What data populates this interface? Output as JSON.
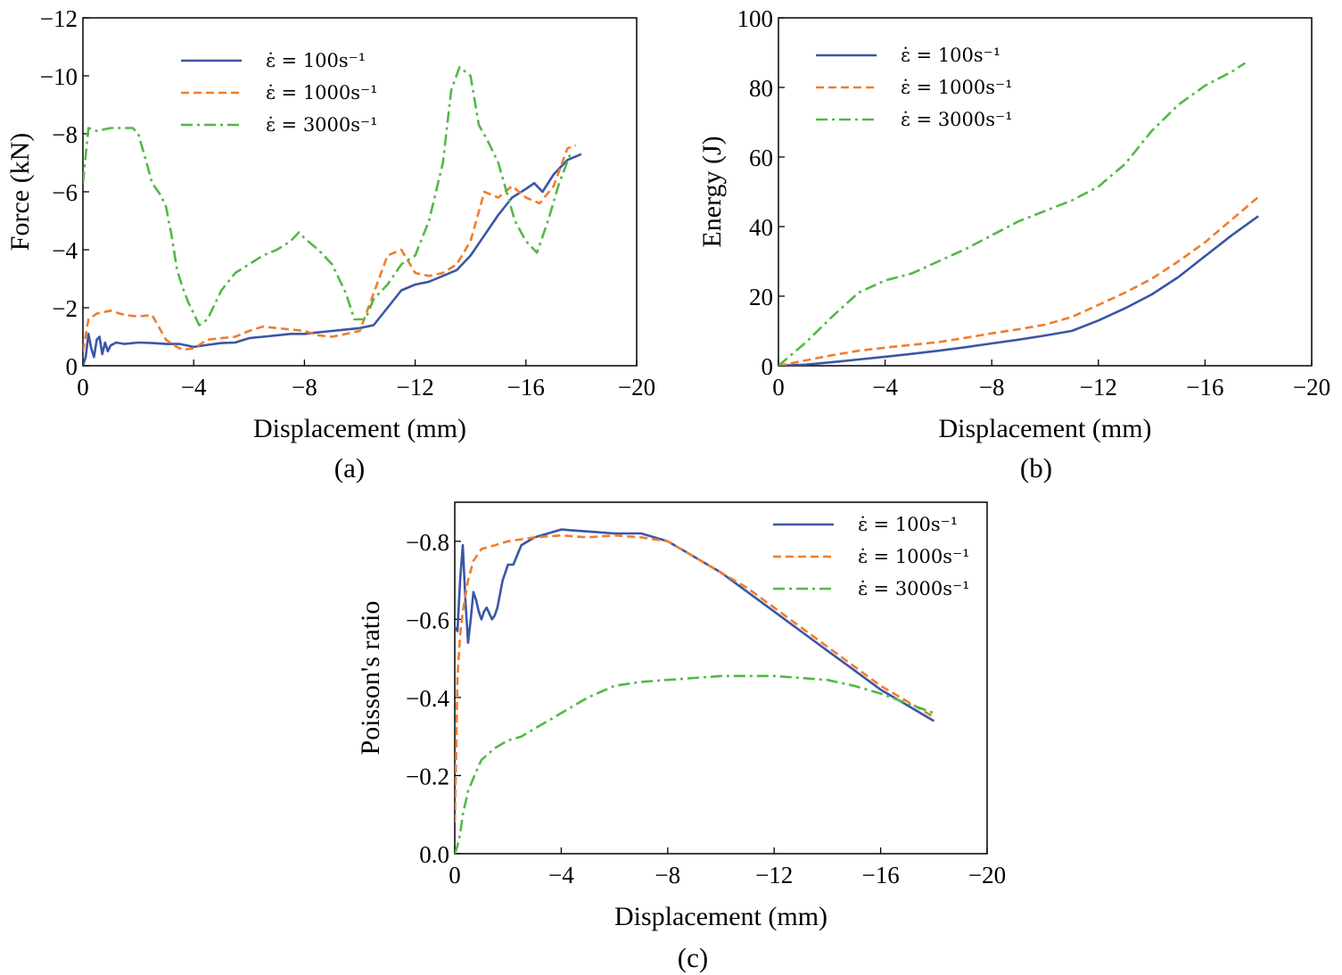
{
  "figure": {
    "captions": [
      "(a)",
      "(b)",
      "(c)"
    ],
    "colors": {
      "s100": "#3a56a6",
      "s1000": "#f07d2d",
      "s3000": "#53b848"
    }
  },
  "chart_data": [
    {
      "id": "a",
      "type": "line",
      "caption": "(a)",
      "xlabel": "Displacement (mm)",
      "ylabel": "Force (kN)",
      "xlim": [
        0,
        -20
      ],
      "ylim": [
        0,
        -12
      ],
      "xticks": [
        "0",
        "−4",
        "−8",
        "−12",
        "−16",
        "−20"
      ],
      "xtick_values": [
        0,
        -4,
        -8,
        -12,
        -16,
        -20
      ],
      "yticks": [
        "0",
        "−2",
        "−4",
        "−6",
        "−8",
        "−10",
        "−12"
      ],
      "ytick_values": [
        0,
        -2,
        -4,
        -6,
        -8,
        -10,
        -12
      ],
      "legend_position": "top-left",
      "series": [
        {
          "name": "ε̇ = 100s⁻¹",
          "style": "solid",
          "x": [
            0,
            -0.1,
            -0.2,
            -0.3,
            -0.4,
            -0.5,
            -0.6,
            -0.7,
            -0.8,
            -0.9,
            -1.0,
            -1.2,
            -1.5,
            -2.0,
            -2.5,
            -3.0,
            -3.5,
            -4.0,
            -4.5,
            -5.0,
            -5.5,
            -6.0,
            -6.5,
            -7.0,
            -7.5,
            -8.0,
            -8.5,
            -9.0,
            -9.5,
            -10.0,
            -10.5,
            -11.0,
            -11.5,
            -12.0,
            -12.5,
            -13.0,
            -13.5,
            -14.0,
            -14.5,
            -15.0,
            -15.5,
            -16.0,
            -16.3,
            -16.6,
            -17.0,
            -17.5,
            -18.0
          ],
          "y": [
            0,
            -0.3,
            -1.1,
            -0.6,
            -0.3,
            -0.9,
            -1.0,
            -0.4,
            -0.8,
            -0.5,
            -0.7,
            -0.8,
            -0.75,
            -0.8,
            -0.78,
            -0.75,
            -0.75,
            -0.65,
            -0.72,
            -0.78,
            -0.8,
            -0.95,
            -1.0,
            -1.05,
            -1.1,
            -1.1,
            -1.15,
            -1.2,
            -1.25,
            -1.3,
            -1.4,
            -2.0,
            -2.6,
            -2.8,
            -2.9,
            -3.1,
            -3.3,
            -3.8,
            -4.5,
            -5.2,
            -5.8,
            -6.1,
            -6.3,
            -6.0,
            -6.6,
            -7.1,
            -7.3
          ]
        },
        {
          "name": "ε̇ = 1000s⁻¹",
          "style": "dashed",
          "x": [
            0,
            -0.2,
            -0.5,
            -1.0,
            -1.5,
            -2.0,
            -2.5,
            -3.0,
            -3.3,
            -3.6,
            -4.0,
            -4.5,
            -5.0,
            -5.5,
            -6.0,
            -6.5,
            -7.0,
            -7.5,
            -8.0,
            -8.5,
            -9.0,
            -9.5,
            -10.0,
            -10.5,
            -11.0,
            -11.5,
            -12.0,
            -12.5,
            -13.0,
            -13.5,
            -14.0,
            -14.5,
            -15.0,
            -15.5,
            -16.0,
            -16.5,
            -17.0,
            -17.5,
            -17.8
          ],
          "y": [
            -0.5,
            -1.6,
            -1.8,
            -1.9,
            -1.75,
            -1.7,
            -1.75,
            -0.9,
            -0.7,
            -0.55,
            -0.6,
            -0.9,
            -0.95,
            -1.0,
            -1.2,
            -1.35,
            -1.3,
            -1.25,
            -1.2,
            -1.05,
            -1.0,
            -1.1,
            -1.2,
            -2.5,
            -3.8,
            -4.0,
            -3.2,
            -3.1,
            -3.2,
            -3.5,
            -4.3,
            -6.0,
            -5.8,
            -6.2,
            -5.8,
            -5.6,
            -6.2,
            -7.5,
            -7.6
          ]
        },
        {
          "name": "ε̇ = 3000s⁻¹",
          "style": "dashdot",
          "x": [
            0,
            -0.2,
            -0.5,
            -1.0,
            -1.5,
            -1.8,
            -2.0,
            -2.3,
            -2.5,
            -2.8,
            -3.0,
            -3.2,
            -3.4,
            -3.6,
            -3.8,
            -4.0,
            -4.2,
            -4.5,
            -5.0,
            -5.5,
            -6.0,
            -6.5,
            -7.0,
            -7.5,
            -7.8,
            -8.0,
            -8.5,
            -9.0,
            -9.5,
            -9.8,
            -10.2,
            -10.5,
            -11.0,
            -11.5,
            -12.0,
            -12.5,
            -13.0,
            -13.3,
            -13.6,
            -14.0,
            -14.3,
            -14.6,
            -15.0,
            -15.3,
            -15.6,
            -16.0,
            -16.4,
            -16.8,
            -17.2,
            -17.6
          ],
          "y": [
            -6.3,
            -8.2,
            -8.1,
            -8.2,
            -8.2,
            -8.2,
            -8.0,
            -7.0,
            -6.3,
            -5.9,
            -5.5,
            -4.5,
            -3.3,
            -2.7,
            -2.2,
            -1.8,
            -1.4,
            -1.6,
            -2.6,
            -3.2,
            -3.5,
            -3.8,
            -4.0,
            -4.3,
            -4.6,
            -4.4,
            -4.0,
            -3.5,
            -2.5,
            -1.6,
            -1.6,
            -2.3,
            -2.8,
            -3.5,
            -3.8,
            -5.0,
            -7.0,
            -9.5,
            -10.3,
            -10.0,
            -8.3,
            -7.8,
            -7.0,
            -6.0,
            -5.0,
            -4.3,
            -3.9,
            -5.0,
            -6.3,
            -7.3
          ]
        }
      ]
    },
    {
      "id": "b",
      "type": "line",
      "caption": "(b)",
      "xlabel": "Displacement (mm)",
      "ylabel": "Energy (J)",
      "xlim": [
        0,
        -20
      ],
      "ylim": [
        0,
        100
      ],
      "xticks": [
        "0",
        "−4",
        "−8",
        "−12",
        "−16",
        "−20"
      ],
      "xtick_values": [
        0,
        -4,
        -8,
        -12,
        -16,
        -20
      ],
      "yticks": [
        "0",
        "20",
        "40",
        "60",
        "80",
        "100"
      ],
      "ytick_values": [
        0,
        20,
        40,
        60,
        80,
        100
      ],
      "legend_position": "top-left",
      "series": [
        {
          "name": "ε̇ = 100s⁻¹",
          "style": "solid",
          "x": [
            0,
            -1,
            -2,
            -3,
            -4,
            -5,
            -6,
            -7,
            -8,
            -9,
            -10,
            -11,
            -12,
            -13,
            -14,
            -15,
            -16,
            -17,
            -18
          ],
          "y": [
            0,
            0.3,
            1.0,
            1.8,
            2.6,
            3.4,
            4.3,
            5.3,
            6.4,
            7.5,
            8.7,
            10.0,
            13.0,
            16.5,
            20.5,
            25.5,
            31.5,
            37.5,
            43.0
          ]
        },
        {
          "name": "ε̇ = 1000s⁻¹",
          "style": "dashed",
          "x": [
            0,
            -1,
            -2,
            -3,
            -4,
            -5,
            -6,
            -7,
            -8,
            -9,
            -10,
            -11,
            -12,
            -13,
            -14,
            -15,
            -16,
            -17,
            -18
          ],
          "y": [
            0,
            1.5,
            3.0,
            4.3,
            5.2,
            6.0,
            6.8,
            8.0,
            9.3,
            10.5,
            11.8,
            14.0,
            17.5,
            21.0,
            25.0,
            30.0,
            35.5,
            42.0,
            48.5
          ]
        },
        {
          "name": "ε̇ = 3000s⁻¹",
          "style": "dashdot",
          "x": [
            0,
            -1,
            -2,
            -3,
            -4,
            -5,
            -6,
            -7,
            -8,
            -9,
            -10,
            -11,
            -12,
            -13,
            -14,
            -15,
            -16,
            -17,
            -17.5
          ],
          "y": [
            0,
            6.5,
            14.0,
            21.0,
            24.5,
            26.5,
            30.0,
            33.5,
            37.5,
            41.5,
            44.5,
            47.5,
            51.5,
            58.0,
            67.5,
            75.0,
            80.5,
            84.5,
            87.0
          ]
        }
      ]
    },
    {
      "id": "c",
      "type": "line",
      "caption": "(c)",
      "xlabel": "Displacement (mm)",
      "ylabel": "Poisson's ratio",
      "xlim": [
        0,
        -20
      ],
      "ylim": [
        0,
        -0.9
      ],
      "xticks": [
        "0",
        "−4",
        "−8",
        "−12",
        "−16",
        "−20"
      ],
      "xtick_values": [
        0,
        -4,
        -8,
        -12,
        -16,
        -20
      ],
      "yticks": [
        "0.0",
        "−0.2",
        "−0.4",
        "−0.6",
        "−0.8"
      ],
      "ytick_values": [
        0,
        -0.2,
        -0.4,
        -0.6,
        -0.8
      ],
      "legend_position": "top-right",
      "series": [
        {
          "name": "ε̇ = 100s⁻¹",
          "style": "solid",
          "x": [
            0,
            -0.1,
            -0.2,
            -0.3,
            -0.4,
            -0.5,
            -0.6,
            -0.7,
            -0.8,
            -0.9,
            -1.0,
            -1.1,
            -1.2,
            -1.4,
            -1.5,
            -1.6,
            -1.8,
            -2.0,
            -2.2,
            -2.5,
            -3.0,
            -3.5,
            -4.0,
            -5.0,
            -6.0,
            -7.0,
            -8.0,
            -9.0,
            -10.0,
            -11.0,
            -12.0,
            -13.0,
            -14.0,
            -15.0,
            -16.0,
            -17.0,
            -18.0
          ],
          "y": [
            -0.58,
            -0.57,
            -0.7,
            -0.79,
            -0.65,
            -0.54,
            -0.6,
            -0.67,
            -0.65,
            -0.62,
            -0.6,
            -0.62,
            -0.63,
            -0.6,
            -0.61,
            -0.63,
            -0.7,
            -0.74,
            -0.74,
            -0.79,
            -0.81,
            -0.82,
            -0.83,
            -0.825,
            -0.82,
            -0.82,
            -0.8,
            -0.76,
            -0.72,
            -0.67,
            -0.62,
            -0.57,
            -0.52,
            -0.47,
            -0.42,
            -0.38,
            -0.34
          ]
        },
        {
          "name": "ε̇ = 1000s⁻¹",
          "style": "dashed",
          "x": [
            0,
            -0.05,
            -0.1,
            -0.2,
            -0.3,
            -0.4,
            -0.5,
            -0.7,
            -1.0,
            -1.5,
            -2.0,
            -2.5,
            -3.0,
            -4.0,
            -5.0,
            -6.0,
            -7.0,
            -8.0,
            -9.0,
            -10.0,
            -11.0,
            -12.0,
            -13.0,
            -14.0,
            -15.0,
            -16.0,
            -17.0,
            -18.0
          ],
          "y": [
            -0.08,
            -0.25,
            -0.45,
            -0.56,
            -0.62,
            -0.66,
            -0.7,
            -0.75,
            -0.78,
            -0.79,
            -0.8,
            -0.805,
            -0.81,
            -0.815,
            -0.81,
            -0.815,
            -0.81,
            -0.8,
            -0.76,
            -0.72,
            -0.68,
            -0.63,
            -0.58,
            -0.53,
            -0.48,
            -0.43,
            -0.39,
            -0.35
          ]
        },
        {
          "name": "ε̇ = 3000s⁻¹",
          "style": "dashdot",
          "x": [
            0,
            -0.1,
            -0.2,
            -0.3,
            -0.5,
            -0.8,
            -1.0,
            -1.5,
            -2.0,
            -2.5,
            -3.0,
            -4.0,
            -5.0,
            -6.0,
            -7.0,
            -8.0,
            -9.0,
            -10.0,
            -11.0,
            -12.0,
            -13.0,
            -14.0,
            -15.0,
            -16.0,
            -17.0,
            -18.0
          ],
          "y": [
            0,
            -0.02,
            -0.05,
            -0.1,
            -0.16,
            -0.21,
            -0.24,
            -0.27,
            -0.29,
            -0.3,
            -0.32,
            -0.36,
            -0.4,
            -0.43,
            -0.44,
            -0.445,
            -0.45,
            -0.455,
            -0.455,
            -0.455,
            -0.45,
            -0.445,
            -0.43,
            -0.41,
            -0.385,
            -0.36
          ]
        }
      ]
    }
  ]
}
